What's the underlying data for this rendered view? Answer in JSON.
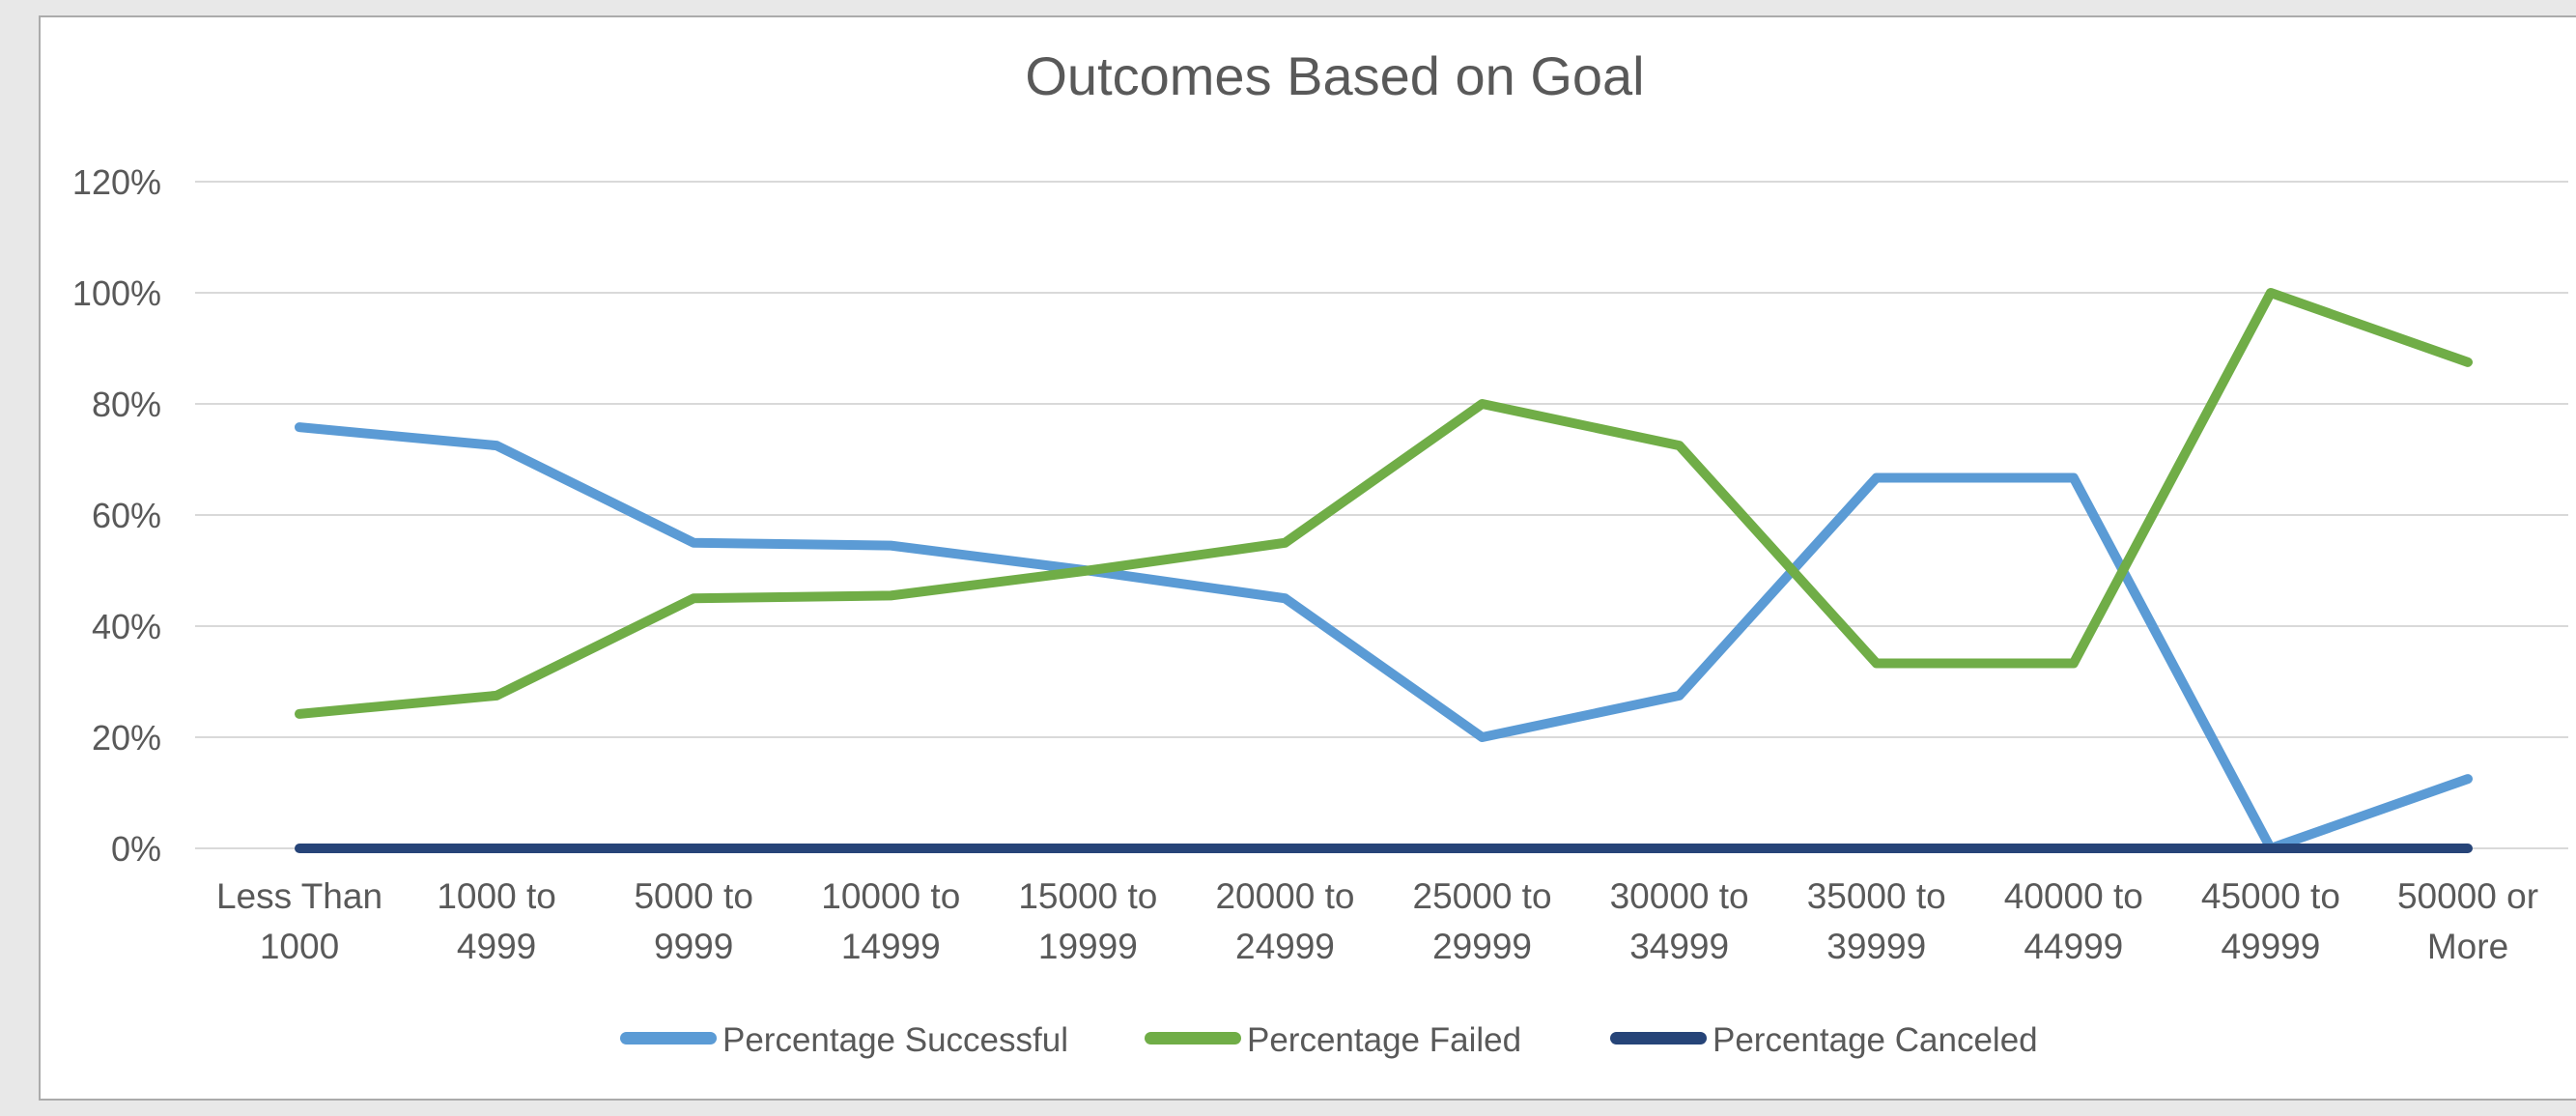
{
  "frame": {
    "background": "#FFFFFF",
    "border_color": "#ABABAB"
  },
  "chart_data": {
    "type": "line",
    "title": "Outcomes Based on Goal",
    "categories": [
      "Less Than 1000",
      "1000 to 4999",
      "5000 to 9999",
      "10000 to 14999",
      "15000 to 19999",
      "20000 to 24999",
      "25000 to 29999",
      "30000 to 34999",
      "35000 to 39999",
      "40000 to 44999",
      "45000 to 49999",
      "50000 or More"
    ],
    "series": [
      {
        "name": "Percentage Successful",
        "color": "#5B9BD5",
        "values": [
          75.8,
          72.5,
          55,
          54.5,
          50,
          45,
          20,
          27.5,
          66.7,
          66.7,
          0,
          12.5
        ]
      },
      {
        "name": "Percentage Failed",
        "color": "#70AD47",
        "values": [
          24.2,
          27.5,
          45,
          45.5,
          50,
          55,
          80,
          72.5,
          33.3,
          33.3,
          100,
          87.5
        ]
      },
      {
        "name": "Percentage Canceled",
        "color": "#264478",
        "values": [
          0,
          0,
          0,
          0,
          0,
          0,
          0,
          0,
          0,
          0,
          0,
          0
        ]
      }
    ],
    "xlabel": "",
    "ylabel": "",
    "y_ticks": [
      "0%",
      "20%",
      "40%",
      "60%",
      "80%",
      "100%",
      "120%"
    ],
    "ylim": [
      0,
      120
    ],
    "grid": true,
    "legend_position": "bottom",
    "text_color": "#595959",
    "gridline_color": "#D9D9D9"
  }
}
